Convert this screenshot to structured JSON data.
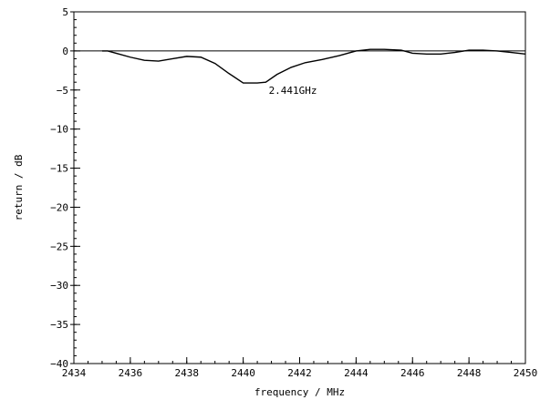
{
  "chart_data": {
    "type": "line",
    "title": "",
    "xlabel": "frequency / MHz",
    "ylabel": "return / dB",
    "xlim": [
      2434,
      2450
    ],
    "ylim": [
      -40,
      5
    ],
    "x_ticks": [
      2434,
      2436,
      2438,
      2440,
      2442,
      2444,
      2446,
      2448,
      2450
    ],
    "y_ticks": [
      5,
      0,
      -5,
      -10,
      -15,
      -20,
      -25,
      -30,
      -35,
      -40
    ],
    "x_tick_labels": [
      "2434",
      "2436",
      "2438",
      "2440",
      "2442",
      "2444",
      "2446",
      "2448",
      "2450"
    ],
    "y_tick_labels": [
      "5",
      "0",
      "−5",
      "−10",
      "−15",
      "−20",
      "−25",
      "−30",
      "−35",
      "−40"
    ],
    "x_minor_step": 0.5,
    "y_minor_step": 1,
    "grid": false,
    "reference_line_y": 0,
    "series": [
      {
        "x": [
          2435,
          2435.2,
          2435.6,
          2436,
          2436.5,
          2437,
          2437.5,
          2438,
          2438.5,
          2439,
          2439.5,
          2440,
          2440.5,
          2440.8,
          2441.2,
          2441.7,
          2442.2,
          2442.8,
          2443.4,
          2444,
          2444.5,
          2445,
          2445.6,
          2446,
          2446.5,
          2447,
          2447.5,
          2448,
          2448.5,
          2449,
          2449.5,
          2450
        ],
        "y": [
          0,
          0,
          -0.4,
          -0.8,
          -1.2,
          -1.3,
          -1.0,
          -0.7,
          -0.8,
          -1.6,
          -2.9,
          -4.1,
          -4.1,
          -4.0,
          -3.0,
          -2.1,
          -1.5,
          -1.1,
          -0.6,
          0.0,
          0.2,
          0.2,
          0.1,
          -0.3,
          -0.4,
          -0.4,
          -0.2,
          0.1,
          0.1,
          0.0,
          -0.2,
          -0.4
        ],
        "color": "#000000"
      }
    ],
    "annotations": [
      {
        "text": "2.441GHz",
        "x": 2441,
        "y": -4.1
      }
    ],
    "line_color": "#000000",
    "background": "#ffffff"
  }
}
